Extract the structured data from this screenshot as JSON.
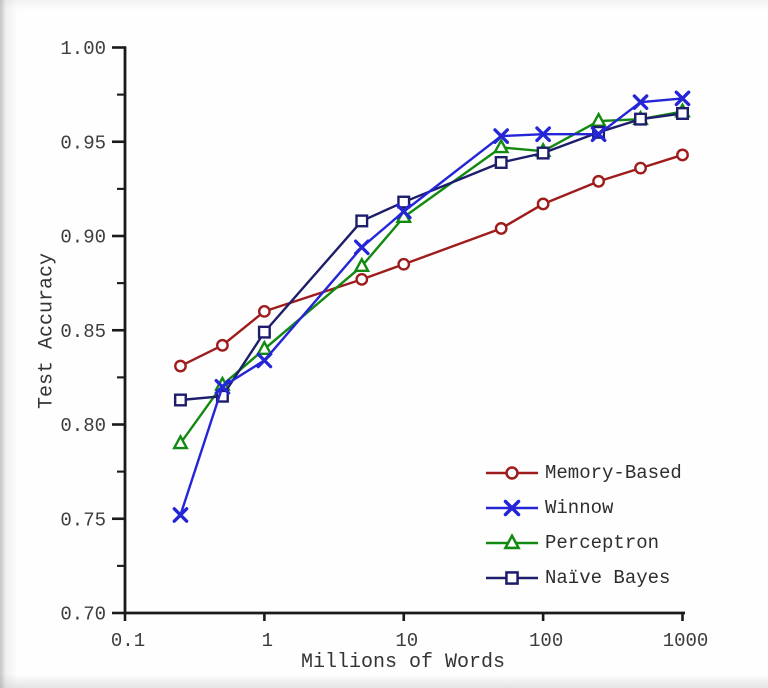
{
  "chart_data": {
    "type": "line",
    "title": "",
    "xlabel": "Millions of Words",
    "ylabel": "Test Accuracy",
    "x_scale": "log",
    "xlim": [
      0.1,
      1000
    ],
    "ylim": [
      0.7,
      1.0
    ],
    "grid": false,
    "legend_position": "lower right",
    "x_ticks": [
      {
        "value": 0.1,
        "label": "0.1"
      },
      {
        "value": 1,
        "label": "1"
      },
      {
        "value": 10,
        "label": "10"
      },
      {
        "value": 100,
        "label": "100"
      },
      {
        "value": 1000,
        "label": "1000"
      }
    ],
    "y_ticks": [
      {
        "value": 1.0,
        "label": "1.00"
      },
      {
        "value": 0.95,
        "label": "0.95"
      },
      {
        "value": 0.9,
        "label": "0.90"
      },
      {
        "value": 0.85,
        "label": "0.85"
      },
      {
        "value": 0.8,
        "label": "0.80"
      },
      {
        "value": 0.75,
        "label": "0.75"
      },
      {
        "value": 0.7,
        "label": "0.70"
      }
    ],
    "y_minor_ticks": [
      0.725,
      0.775,
      0.825,
      0.875,
      0.925,
      0.975
    ],
    "x": [
      0.25,
      0.5,
      1,
      5,
      10,
      50,
      100,
      250,
      500,
      1000
    ],
    "series": [
      {
        "name": "Memory-Based",
        "color": "#9e1c1c",
        "marker": "circle",
        "values": [
          0.831,
          0.842,
          0.86,
          0.877,
          0.885,
          0.904,
          0.917,
          0.929,
          0.936,
          0.943
        ]
      },
      {
        "name": "Winnow",
        "color": "#2525d8",
        "marker": "x",
        "values": [
          0.752,
          0.82,
          0.834,
          0.894,
          0.913,
          0.953,
          0.954,
          0.954,
          0.971,
          0.973
        ]
      },
      {
        "name": "Perceptron",
        "color": "#128a12",
        "marker": "triangle",
        "values": [
          0.79,
          0.821,
          0.84,
          0.884,
          0.91,
          0.947,
          0.945,
          0.961,
          0.962,
          0.966
        ]
      },
      {
        "name": "Naïve Bayes",
        "color": "#1d1d6b",
        "marker": "square",
        "values": [
          0.813,
          0.815,
          0.849,
          0.908,
          0.918,
          0.939,
          0.944,
          0.955,
          0.962,
          0.965
        ]
      }
    ],
    "axis_color": "#1a1a1a"
  }
}
